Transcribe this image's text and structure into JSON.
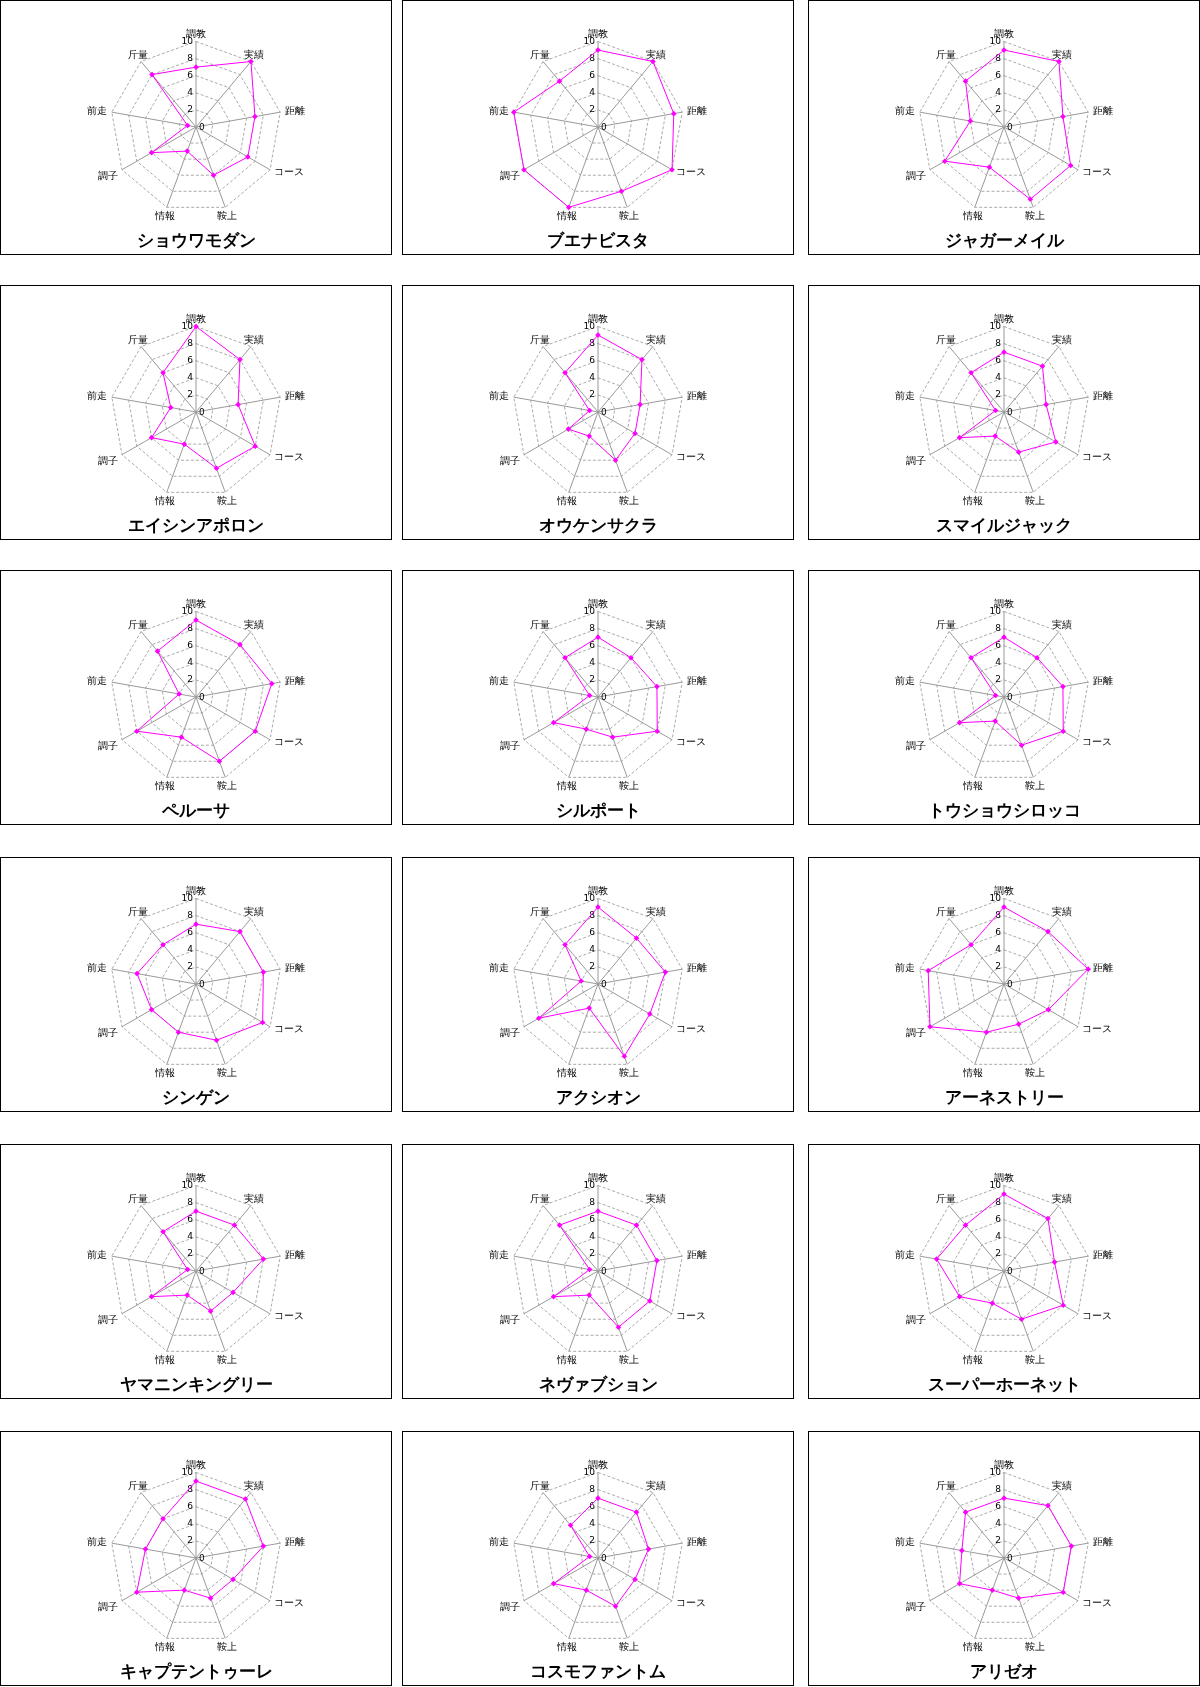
{
  "chart_data": [
    {
      "type": "radar",
      "title": "ショウワモダン",
      "categories": [
        "調教",
        "実績",
        "距離",
        "コース",
        "鞍上",
        "情報",
        "調子",
        "前走",
        "斤量"
      ],
      "series": [
        {
          "color": "#ff00ff",
          "values": [
            7,
            10,
            7,
            7,
            6,
            3,
            6,
            1,
            8
          ]
        }
      ],
      "ylim": [
        0,
        10
      ],
      "yticks": [
        0,
        2,
        4,
        6,
        8,
        10
      ],
      "grid": true,
      "marker": "diamond"
    },
    {
      "type": "radar",
      "title": "ブエナビスタ",
      "categories": [
        "調教",
        "実績",
        "距離",
        "コース",
        "鞍上",
        "情報",
        "調子",
        "前走",
        "斤量"
      ],
      "series": [
        {
          "color": "#ff00ff",
          "values": [
            9,
            10,
            9,
            10,
            8,
            10,
            10,
            10,
            7
          ]
        }
      ],
      "ylim": [
        0,
        10
      ],
      "yticks": [
        0,
        2,
        4,
        6,
        8,
        10
      ],
      "grid": true,
      "marker": "diamond"
    },
    {
      "type": "radar",
      "title": "ジャガーメイル",
      "categories": [
        "調教",
        "実績",
        "距離",
        "コース",
        "鞍上",
        "情報",
        "調子",
        "前走",
        "斤量"
      ],
      "series": [
        {
          "color": "#ff00ff",
          "values": [
            9,
            10,
            7,
            9,
            9,
            5,
            8,
            4,
            7
          ]
        }
      ],
      "ylim": [
        0,
        10
      ],
      "yticks": [
        0,
        2,
        4,
        6,
        8,
        10
      ],
      "grid": true,
      "marker": "diamond"
    },
    {
      "type": "radar",
      "title": "エイシンアポロン",
      "categories": [
        "調教",
        "実績",
        "距離",
        "コース",
        "鞍上",
        "情報",
        "調子",
        "前走",
        "斤量"
      ],
      "series": [
        {
          "color": "#ff00ff",
          "values": [
            10,
            8,
            5,
            8,
            7,
            4,
            6,
            3,
            6
          ]
        }
      ],
      "ylim": [
        0,
        10
      ],
      "yticks": [
        0,
        2,
        4,
        6,
        8,
        10
      ],
      "grid": true,
      "marker": "diamond"
    },
    {
      "type": "radar",
      "title": "オウケンサクラ",
      "categories": [
        "調教",
        "実績",
        "距離",
        "コース",
        "鞍上",
        "情報",
        "調子",
        "前走",
        "斤量"
      ],
      "series": [
        {
          "color": "#ff00ff",
          "values": [
            9,
            8,
            5,
            5,
            6,
            3,
            4,
            1,
            6
          ]
        }
      ],
      "ylim": [
        0,
        10
      ],
      "yticks": [
        0,
        2,
        4,
        6,
        8,
        10
      ],
      "grid": true,
      "marker": "diamond"
    },
    {
      "type": "radar",
      "title": "スマイルジャック",
      "categories": [
        "調教",
        "実績",
        "距離",
        "コース",
        "鞍上",
        "情報",
        "調子",
        "前走",
        "斤量"
      ],
      "series": [
        {
          "color": "#ff00ff",
          "values": [
            7,
            7,
            5,
            7,
            5,
            3,
            6,
            1,
            6
          ]
        }
      ],
      "ylim": [
        0,
        10
      ],
      "yticks": [
        0,
        2,
        4,
        6,
        8,
        10
      ],
      "grid": true,
      "marker": "diamond"
    },
    {
      "type": "radar",
      "title": "ペルーサ",
      "categories": [
        "調教",
        "実績",
        "距離",
        "コース",
        "鞍上",
        "情報",
        "調子",
        "前走",
        "斤量"
      ],
      "series": [
        {
          "color": "#ff00ff",
          "values": [
            9,
            8,
            9,
            8,
            8,
            5,
            8,
            2,
            7
          ]
        }
      ],
      "ylim": [
        0,
        10
      ],
      "yticks": [
        0,
        2,
        4,
        6,
        8,
        10
      ],
      "grid": true,
      "marker": "diamond"
    },
    {
      "type": "radar",
      "title": "シルポート",
      "categories": [
        "調教",
        "実績",
        "距離",
        "コース",
        "鞍上",
        "情報",
        "調子",
        "前走",
        "斤量"
      ],
      "series": [
        {
          "color": "#ff00ff",
          "values": [
            7,
            6,
            7,
            8,
            5,
            4,
            6,
            1,
            6
          ]
        }
      ],
      "ylim": [
        0,
        10
      ],
      "yticks": [
        0,
        2,
        4,
        6,
        8,
        10
      ],
      "grid": true,
      "marker": "diamond"
    },
    {
      "type": "radar",
      "title": "トウショウシロッコ",
      "categories": [
        "調教",
        "実績",
        "距離",
        "コース",
        "鞍上",
        "情報",
        "調子",
        "前走",
        "斤量"
      ],
      "series": [
        {
          "color": "#ff00ff",
          "values": [
            7,
            6,
            7,
            8,
            6,
            3,
            6,
            1,
            6
          ]
        }
      ],
      "ylim": [
        0,
        10
      ],
      "yticks": [
        0,
        2,
        4,
        6,
        8,
        10
      ],
      "grid": true,
      "marker": "diamond"
    },
    {
      "type": "radar",
      "title": "シンゲン",
      "categories": [
        "調教",
        "実績",
        "距離",
        "コース",
        "鞍上",
        "情報",
        "調子",
        "前走",
        "斤量"
      ],
      "series": [
        {
          "color": "#ff00ff",
          "values": [
            7,
            8,
            8,
            9,
            7,
            6,
            6,
            7,
            6
          ]
        }
      ],
      "ylim": [
        0,
        10
      ],
      "yticks": [
        0,
        2,
        4,
        6,
        8,
        10
      ],
      "grid": true,
      "marker": "diamond"
    },
    {
      "type": "radar",
      "title": "アクシオン",
      "categories": [
        "調教",
        "実績",
        "距離",
        "コース",
        "鞍上",
        "情報",
        "調子",
        "前走",
        "斤量"
      ],
      "series": [
        {
          "color": "#ff00ff",
          "values": [
            9,
            7,
            8,
            7,
            9,
            3,
            8,
            2,
            6
          ]
        }
      ],
      "ylim": [
        0,
        10
      ],
      "yticks": [
        0,
        2,
        4,
        6,
        8,
        10
      ],
      "grid": true,
      "marker": "diamond"
    },
    {
      "type": "radar",
      "title": "アーネストリー",
      "categories": [
        "調教",
        "実績",
        "距離",
        "コース",
        "鞍上",
        "情報",
        "調子",
        "前走",
        "斤量"
      ],
      "series": [
        {
          "color": "#ff00ff",
          "values": [
            9,
            8,
            10,
            6,
            5,
            6,
            10,
            9,
            6
          ]
        }
      ],
      "ylim": [
        0,
        10
      ],
      "yticks": [
        0,
        2,
        4,
        6,
        8,
        10
      ],
      "grid": true,
      "marker": "diamond"
    },
    {
      "type": "radar",
      "title": "ヤマニンキングリー",
      "categories": [
        "調教",
        "実績",
        "距離",
        "コース",
        "鞍上",
        "情報",
        "調子",
        "前走",
        "斤量"
      ],
      "series": [
        {
          "color": "#ff00ff",
          "values": [
            7,
            7,
            8,
            5,
            5,
            3,
            6,
            1,
            6
          ]
        }
      ],
      "ylim": [
        0,
        10
      ],
      "yticks": [
        0,
        2,
        4,
        6,
        8,
        10
      ],
      "grid": true,
      "marker": "diamond"
    },
    {
      "type": "radar",
      "title": "ネヴァブション",
      "categories": [
        "調教",
        "実績",
        "距離",
        "コース",
        "鞍上",
        "情報",
        "調子",
        "前走",
        "斤量"
      ],
      "series": [
        {
          "color": "#ff00ff",
          "values": [
            7,
            7,
            7,
            7,
            7,
            3,
            6,
            1,
            7
          ]
        }
      ],
      "ylim": [
        0,
        10
      ],
      "yticks": [
        0,
        2,
        4,
        6,
        8,
        10
      ],
      "grid": true,
      "marker": "diamond"
    },
    {
      "type": "radar",
      "title": "スーパーホーネット",
      "categories": [
        "調教",
        "実績",
        "距離",
        "コース",
        "鞍上",
        "情報",
        "調子",
        "前走",
        "斤量"
      ],
      "series": [
        {
          "color": "#ff00ff",
          "values": [
            9,
            8,
            6,
            8,
            6,
            4,
            6,
            8,
            7
          ]
        }
      ],
      "ylim": [
        0,
        10
      ],
      "yticks": [
        0,
        2,
        4,
        6,
        8,
        10
      ],
      "grid": true,
      "marker": "diamond"
    },
    {
      "type": "radar",
      "title": "キャプテントゥーレ",
      "categories": [
        "調教",
        "実績",
        "距離",
        "コース",
        "鞍上",
        "情報",
        "調子",
        "前走",
        "斤量"
      ],
      "series": [
        {
          "color": "#ff00ff",
          "values": [
            9,
            9,
            8,
            5,
            5,
            4,
            8,
            6,
            6
          ]
        }
      ],
      "ylim": [
        0,
        10
      ],
      "yticks": [
        0,
        2,
        4,
        6,
        8,
        10
      ],
      "grid": true,
      "marker": "diamond"
    },
    {
      "type": "radar",
      "title": "コスモファントム",
      "categories": [
        "調教",
        "実績",
        "距離",
        "コース",
        "鞍上",
        "情報",
        "調子",
        "前走",
        "斤量"
      ],
      "series": [
        {
          "color": "#ff00ff",
          "values": [
            7,
            7,
            6,
            5,
            6,
            4,
            6,
            1,
            5
          ]
        }
      ],
      "ylim": [
        0,
        10
      ],
      "yticks": [
        0,
        2,
        4,
        6,
        8,
        10
      ],
      "grid": true,
      "marker": "diamond"
    },
    {
      "type": "radar",
      "title": "アリゼオ",
      "categories": [
        "調教",
        "実績",
        "距離",
        "コース",
        "鞍上",
        "情報",
        "調子",
        "前走",
        "斤量"
      ],
      "series": [
        {
          "color": "#ff00ff",
          "values": [
            7,
            8,
            8,
            8,
            5,
            4,
            6,
            5,
            7
          ]
        }
      ],
      "ylim": [
        0,
        10
      ],
      "yticks": [
        0,
        2,
        4,
        6,
        8,
        10
      ],
      "grid": true,
      "marker": "diamond"
    }
  ]
}
